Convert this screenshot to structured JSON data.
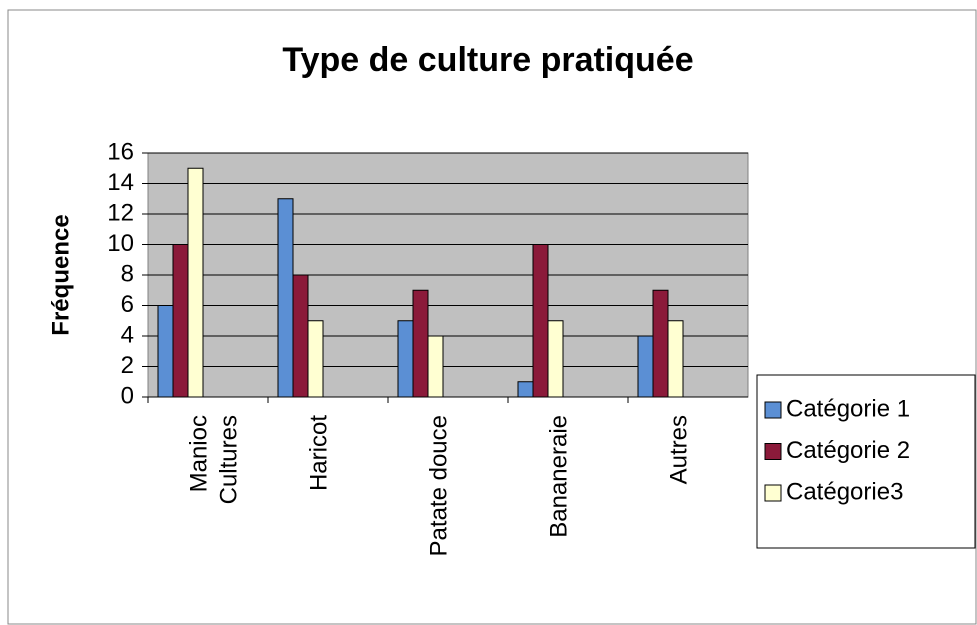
{
  "chart_data": {
    "type": "bar",
    "title": "Type de culture pratiquée",
    "x_label": "Cultures",
    "y_label": "Fréquence",
    "categories": [
      "Manioc",
      "Haricot",
      "Patate douce",
      "Bananeraie",
      "Autres"
    ],
    "series": [
      {
        "name": "Catégorie 1",
        "color": "#5b8fd4",
        "values": [
          6,
          13,
          5,
          1,
          4
        ]
      },
      {
        "name": "Catégorie 2",
        "color": "#8b1a3a",
        "values": [
          10,
          8,
          7,
          10,
          7
        ]
      },
      {
        "name": "Catégorie3",
        "color": "#ffffd2",
        "values": [
          15,
          5,
          4,
          5,
          5
        ]
      }
    ],
    "ylim": [
      0,
      16
    ],
    "yticks": [
      0,
      2,
      4,
      6,
      8,
      10,
      12,
      14,
      16
    ],
    "grid": true,
    "legend": "right"
  }
}
